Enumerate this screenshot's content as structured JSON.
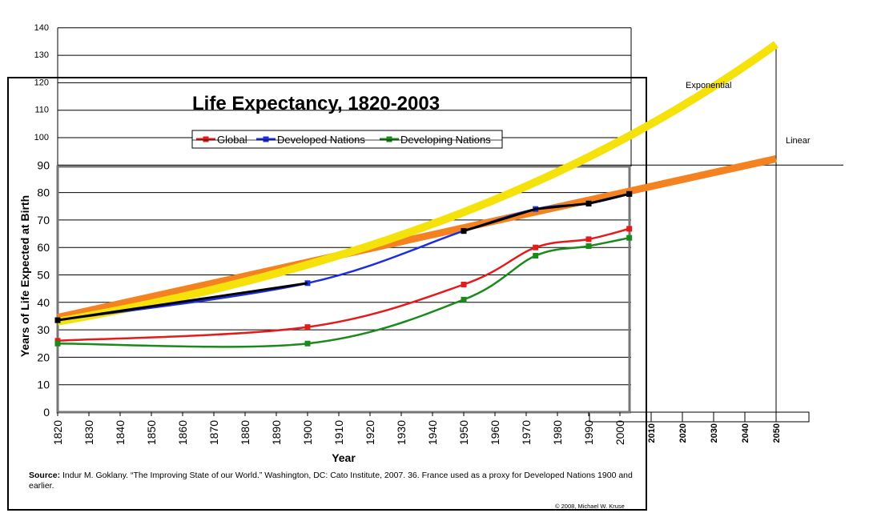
{
  "chart_data": {
    "type": "line",
    "title": "Life Expectancy, 1820-2003",
    "xlabel": "Year",
    "ylabel": "Years of Life Expected at Birth",
    "xlim": [
      1820,
      2003
    ],
    "ylim": [
      0,
      140
    ],
    "legend_position": "top",
    "x_ticks_main": [
      1820,
      1830,
      1840,
      1850,
      1860,
      1870,
      1880,
      1890,
      1900,
      1910,
      1920,
      1930,
      1940,
      1950,
      1960,
      1970,
      1980,
      1990,
      2000
    ],
    "x_ticks_extension": [
      2010,
      2020,
      2030,
      2040,
      2050
    ],
    "y_ticks_main": [
      0,
      10,
      20,
      30,
      40,
      50,
      60,
      70,
      80,
      90
    ],
    "y_ticks_upper": [
      100,
      110,
      120,
      130,
      140
    ],
    "series": [
      {
        "name": "Global",
        "color": "#e31b1b",
        "x": [
          1820,
          1900,
          1950,
          1973,
          1990,
          2003
        ],
        "y": [
          26,
          31,
          46.5,
          60,
          63,
          66.8
        ]
      },
      {
        "name": "Developed Nations",
        "color": "#1c2fe0",
        "x": [
          1820,
          1900,
          1950,
          1973,
          1990,
          2003
        ],
        "y": [
          33.5,
          47,
          66,
          74,
          76,
          79.5
        ]
      },
      {
        "name": "Developing Nations",
        "color": "#1a8a1a",
        "x": [
          1820,
          1900,
          1950,
          1973,
          1990,
          2003
        ],
        "y": [
          25,
          25,
          41,
          57,
          60.5,
          63.5
        ]
      }
    ],
    "trend_lines": [
      {
        "label": "Linear",
        "color": "#f58220",
        "x": [
          1820,
          2050
        ],
        "y": [
          34.5,
          92
        ]
      },
      {
        "label": "Exponential",
        "color": "#f5e20a",
        "x": [
          1820,
          2050
        ],
        "y": [
          33,
          134
        ]
      }
    ],
    "overlay_line": {
      "color": "#000000",
      "x": [
        1820,
        1900,
        1950,
        1973,
        1990,
        2003
      ],
      "y": [
        33.5,
        47,
        66,
        74,
        76,
        79.5
      ]
    },
    "reference_lines": [
      {
        "orientation": "horizontal",
        "y": 90
      },
      {
        "orientation": "vertical",
        "x": 2050
      }
    ]
  },
  "source": {
    "label": "Source:",
    "text": " Indur M. Goklany. “The Improving State of our World.” Washington, DC: Cato Institute, 2007. 36. France used as a proxy for Developed Nations 1900 and earlier."
  },
  "copyright": "© 2008, Michael W. Kruse"
}
